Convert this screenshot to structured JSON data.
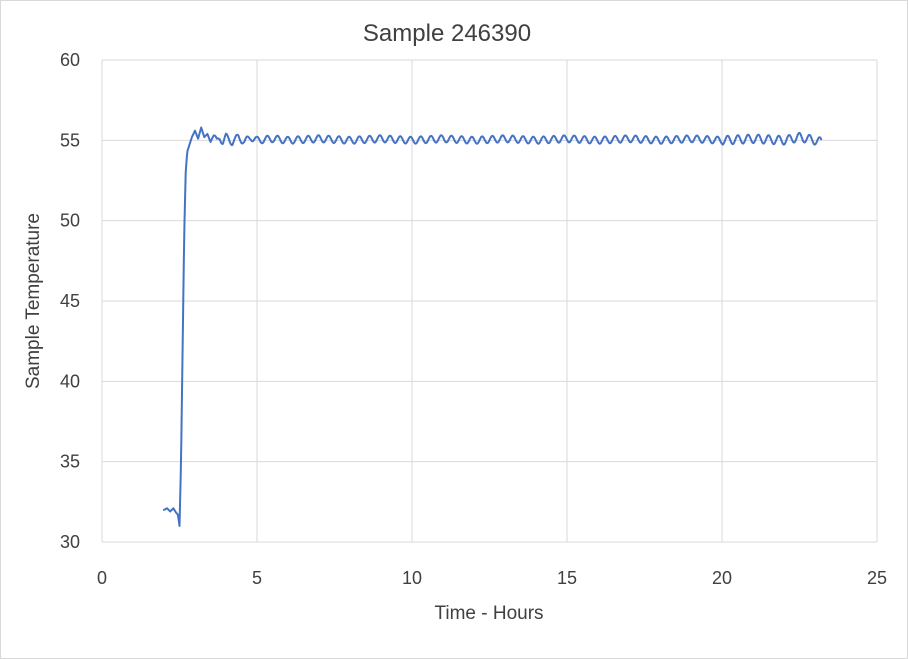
{
  "chart_data": {
    "type": "line",
    "title": "Sample 246390",
    "xlabel": "Time - Hours",
    "ylabel": "Sample Temperature",
    "xlim": [
      0,
      25
    ],
    "ylim": [
      30,
      60
    ],
    "xticks": [
      0,
      5,
      10,
      15,
      20,
      25
    ],
    "yticks": [
      30,
      35,
      40,
      45,
      50,
      55,
      60
    ],
    "grid": true,
    "legend": "none",
    "series": [
      {
        "color": "#4472c4",
        "x": [
          2.0,
          2.1,
          2.2,
          2.3,
          2.4,
          2.45,
          2.5,
          2.55,
          2.6,
          2.65,
          2.7,
          2.75,
          2.8,
          2.85,
          2.9,
          3.0,
          3.1,
          3.2,
          3.3,
          3.4,
          3.5,
          3.6,
          3.7,
          3.8,
          3.9,
          4.0,
          4.2,
          4.4,
          4.6,
          4.8,
          5.0,
          5.5,
          6.0,
          7.0,
          8.0,
          9.0,
          10.0,
          11.0,
          12.0,
          13.0,
          14.0,
          15.0,
          16.0,
          17.0,
          18.0,
          19.0,
          20.0,
          21.0,
          22.0,
          22.5,
          23.0,
          23.2
        ],
        "y": [
          32.0,
          32.1,
          31.9,
          32.1,
          31.8,
          31.7,
          31.0,
          35.0,
          42.0,
          49.0,
          53.0,
          54.3,
          54.6,
          54.9,
          55.2,
          55.6,
          55.1,
          55.8,
          55.2,
          55.4,
          54.9,
          55.3,
          54.9,
          55.2,
          54.9,
          55.2,
          54.9,
          55.2,
          54.9,
          55.2,
          55.0,
          55.1,
          55.0,
          55.1,
          55.0,
          55.1,
          55.0,
          55.1,
          55.0,
          55.1,
          55.0,
          55.1,
          55.0,
          55.1,
          55.0,
          55.1,
          55.0,
          55.1,
          55.0,
          55.2,
          55.0,
          54.9
        ]
      }
    ]
  }
}
